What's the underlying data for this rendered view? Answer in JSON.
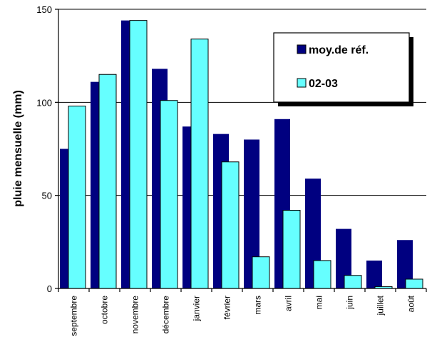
{
  "chart_data": {
    "type": "bar",
    "title": "",
    "xlabel": "",
    "ylabel": "pluie mensuelle (mm)",
    "ylim": [
      0,
      150
    ],
    "yticks": [
      0,
      50,
      100,
      150
    ],
    "grid": "horizontal",
    "legend_position": "top-right",
    "categories": [
      "septembre",
      "octobre",
      "novembre",
      "décembre",
      "janvier",
      "février",
      "mars",
      "avril",
      "mai",
      "juin",
      "juillet",
      "août"
    ],
    "series": [
      {
        "name": "moy.de réf.",
        "color": "#000080",
        "values": [
          75,
          111,
          144,
          118,
          87,
          83,
          80,
          91,
          59,
          32,
          15,
          26
        ]
      },
      {
        "name": "02-03",
        "color": "#66ffff",
        "values": [
          98,
          115,
          144,
          101,
          134,
          68,
          17,
          42,
          15,
          7,
          1,
          5
        ]
      }
    ]
  }
}
